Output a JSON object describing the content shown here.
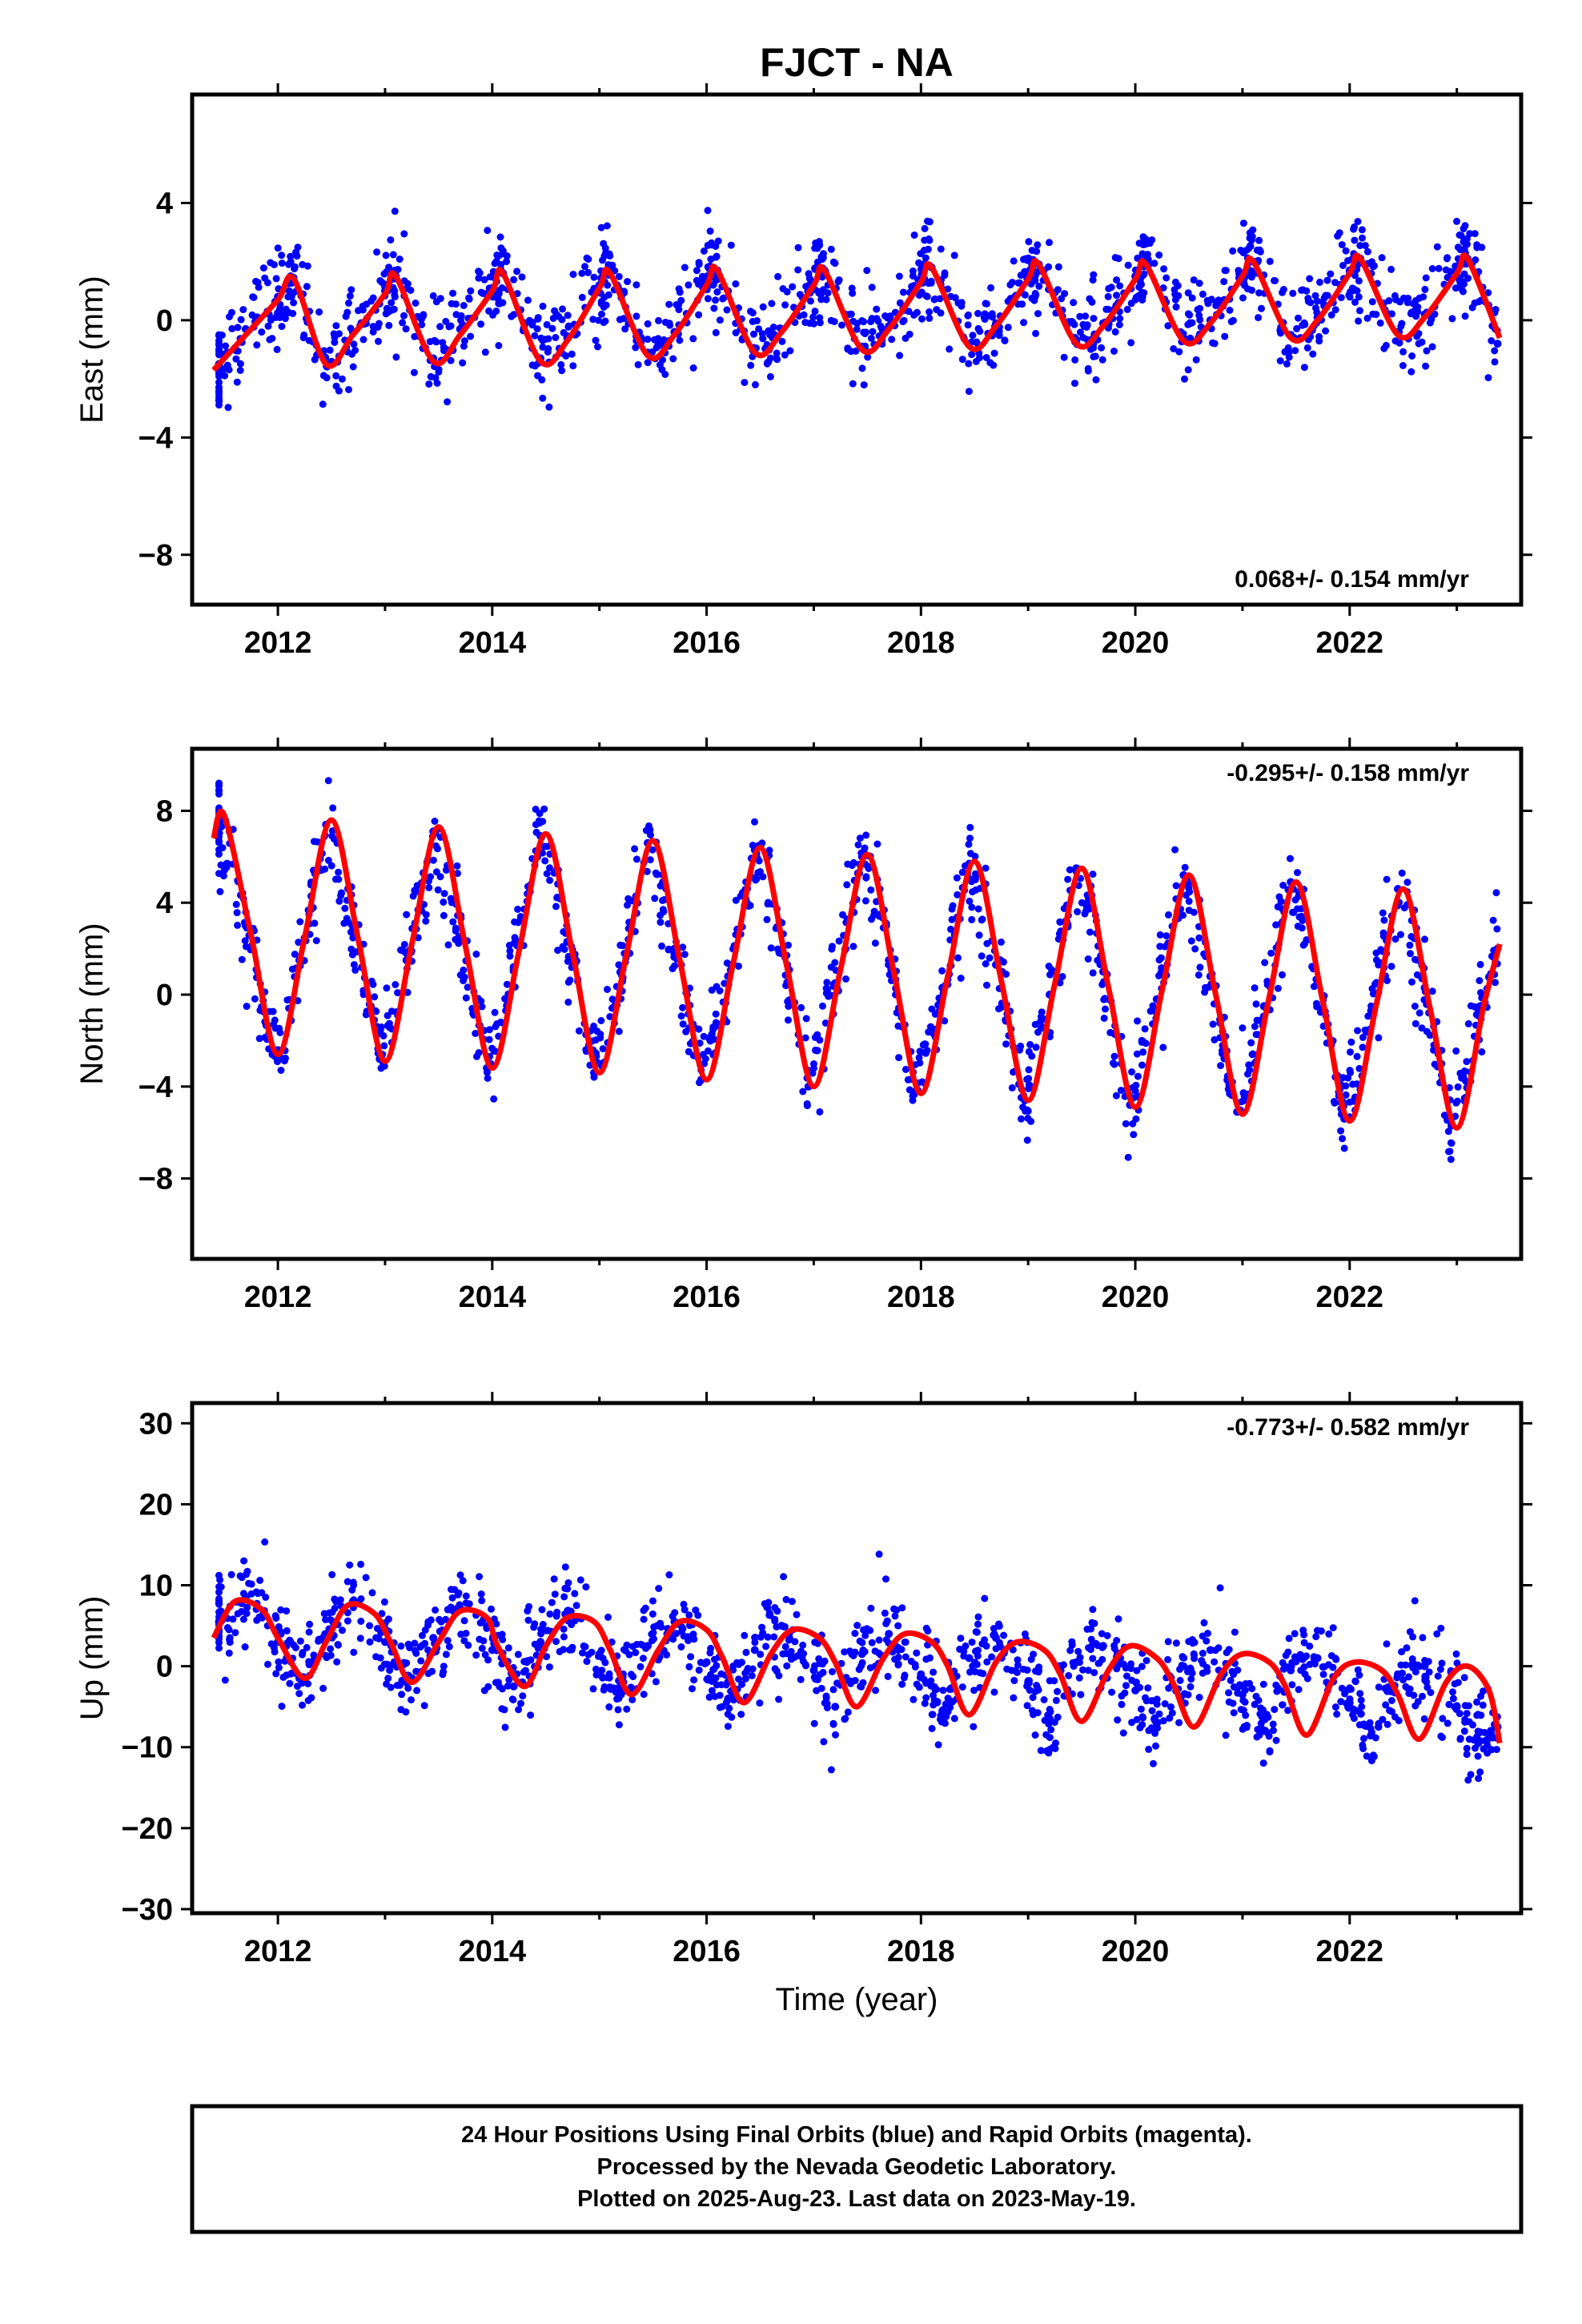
{
  "title": "FJCT - NA",
  "colors": {
    "points": "#0000ff",
    "fit": "#ff0000",
    "frame": "#000000"
  },
  "xaxis": {
    "label": "Time (year)",
    "range": [
      2011.2,
      2023.6
    ],
    "ticks": [
      2012,
      2014,
      2016,
      2018,
      2020,
      2022
    ],
    "tick_labels": [
      "2012",
      "2014",
      "2016",
      "2018",
      "2020",
      "2022"
    ]
  },
  "chart_data": [
    {
      "type": "scatter",
      "panel": "east",
      "ylabel": "East (mm)",
      "ylim": [
        -9.7,
        7.7
      ],
      "yticks": [
        -8,
        -4,
        0,
        4
      ],
      "ytick_labels": [
        "−8",
        "−4",
        "0",
        "4"
      ],
      "rate_label": "0.068+/- 0.154 mm/yr",
      "rate_position": "bottom-right",
      "series": [
        {
          "kind": "points",
          "x": [
            2011.45,
            2011.7,
            2012.0,
            2012.15,
            2012.45,
            2012.7,
            2013.0,
            2013.1,
            2013.45,
            2013.7,
            2014.0,
            2014.1,
            2014.45,
            2014.7,
            2015.0,
            2015.1,
            2015.45,
            2015.7,
            2016.0,
            2016.1,
            2016.45,
            2016.7,
            2017.0,
            2017.1,
            2017.45,
            2017.7,
            2018.0,
            2018.1,
            2018.45,
            2018.7,
            2019.0,
            2019.1,
            2019.45,
            2019.7,
            2020.0,
            2020.1,
            2020.45,
            2020.7,
            2021.0,
            2021.1,
            2021.45,
            2021.7,
            2022.0,
            2022.1,
            2022.45,
            2022.7,
            2023.0,
            2023.1,
            2023.38
          ],
          "y": [
            -1.5,
            -0.3,
            0.8,
            1.3,
            -1.4,
            -0.4,
            1.0,
            1.5,
            -1.3,
            -0.3,
            1.1,
            1.6,
            -1.3,
            -0.6,
            1.2,
            1.6,
            -1.1,
            -0.4,
            1.3,
            1.7,
            -1.0,
            -0.3,
            1.3,
            1.7,
            -0.9,
            -0.2,
            1.4,
            1.8,
            -0.8,
            -0.1,
            1.5,
            1.9,
            -0.7,
            -0.1,
            1.5,
            1.9,
            -0.6,
            0.0,
            1.6,
            2.0,
            -0.5,
            0.1,
            1.7,
            2.1,
            -0.4,
            0.2,
            1.7,
            2.1,
            -0.8
          ]
        },
        {
          "kind": "fit",
          "x": [
            2011.4,
            2011.7,
            2012.0,
            2012.15,
            2012.45,
            2012.7,
            2013.0,
            2013.1,
            2013.45,
            2013.7,
            2014.0,
            2014.1,
            2014.45,
            2014.7,
            2015.0,
            2015.1,
            2015.45,
            2015.7,
            2016.0,
            2016.1,
            2016.45,
            2016.7,
            2017.0,
            2017.1,
            2017.45,
            2017.7,
            2018.0,
            2018.1,
            2018.45,
            2018.7,
            2019.0,
            2019.1,
            2019.45,
            2019.7,
            2020.0,
            2020.1,
            2020.45,
            2020.7,
            2021.0,
            2021.1,
            2021.45,
            2021.7,
            2022.0,
            2022.1,
            2022.45,
            2022.7,
            2023.0,
            2023.1,
            2023.4
          ],
          "y": [
            -1.7,
            -0.5,
            0.7,
            1.4,
            -1.5,
            -0.5,
            0.9,
            1.5,
            -1.4,
            -0.5,
            1.0,
            1.6,
            -1.4,
            -0.7,
            1.1,
            1.6,
            -1.2,
            -0.5,
            1.2,
            1.7,
            -1.1,
            -0.4,
            1.2,
            1.7,
            -1.0,
            -0.3,
            1.3,
            1.8,
            -0.9,
            -0.2,
            1.4,
            1.9,
            -0.8,
            -0.2,
            1.4,
            1.9,
            -0.7,
            -0.1,
            1.5,
            2.0,
            -0.6,
            0.0,
            1.6,
            2.1,
            -0.5,
            0.1,
            1.6,
            2.1,
            -0.6
          ]
        }
      ]
    },
    {
      "type": "scatter",
      "panel": "north",
      "ylabel": "North (mm)",
      "ylim": [
        -11.5,
        10.7
      ],
      "yticks": [
        -8,
        -4,
        0,
        4,
        8
      ],
      "ytick_labels": [
        "−8",
        "−4",
        "0",
        "4",
        "8"
      ],
      "rate_label": "-0.295+/- 0.158 mm/yr",
      "rate_position": "top-right",
      "series": [
        {
          "kind": "points",
          "x": [
            2011.45,
            2011.7,
            2011.95,
            2012.2,
            2012.45,
            2012.7,
            2012.95,
            2013.2,
            2013.45,
            2013.7,
            2013.95,
            2014.2,
            2014.45,
            2014.7,
            2014.95,
            2015.2,
            2015.45,
            2015.7,
            2015.95,
            2016.2,
            2016.45,
            2016.7,
            2016.95,
            2017.2,
            2017.45,
            2017.7,
            2017.95,
            2018.2,
            2018.45,
            2018.7,
            2018.95,
            2019.2,
            2019.45,
            2019.7,
            2019.95,
            2020.2,
            2020.45,
            2020.7,
            2020.95,
            2021.2,
            2021.45,
            2021.7,
            2021.95,
            2022.2,
            2022.45,
            2022.7,
            2022.95,
            2023.2,
            2023.38
          ],
          "y": [
            7.5,
            3.0,
            -2.6,
            1.5,
            7.4,
            2.8,
            -2.8,
            1.5,
            7.1,
            2.5,
            -3.2,
            1.2,
            6.9,
            2.3,
            -3.4,
            1.0,
            6.6,
            2.0,
            -3.7,
            0.8,
            6.3,
            1.8,
            -4.0,
            0.5,
            6.0,
            1.5,
            -4.2,
            0.3,
            5.7,
            1.3,
            -4.5,
            0.0,
            5.5,
            1.0,
            -4.8,
            -0.2,
            5.2,
            0.8,
            -5.1,
            -0.5,
            4.9,
            0.5,
            -5.4,
            -0.7,
            4.6,
            0.3,
            -5.7,
            -0.9,
            2.0
          ]
        },
        {
          "kind": "fit",
          "x": [
            2011.4,
            2011.5,
            2011.75,
            2012.0,
            2012.25,
            2012.5,
            2012.75,
            2013.0,
            2013.25,
            2013.5,
            2013.75,
            2014.0,
            2014.25,
            2014.5,
            2014.75,
            2015.0,
            2015.25,
            2015.5,
            2015.75,
            2016.0,
            2016.25,
            2016.5,
            2016.75,
            2017.0,
            2017.25,
            2017.5,
            2017.75,
            2018.0,
            2018.25,
            2018.5,
            2018.75,
            2019.0,
            2019.25,
            2019.5,
            2019.75,
            2020.0,
            2020.25,
            2020.5,
            2020.75,
            2021.0,
            2021.25,
            2021.5,
            2021.75,
            2022.0,
            2022.25,
            2022.5,
            2022.75,
            2023.0,
            2023.25,
            2023.4
          ],
          "y": [
            6.8,
            7.8,
            2.6,
            -2.6,
            2.5,
            7.6,
            2.4,
            -2.9,
            2.2,
            7.3,
            2.1,
            -3.2,
            1.9,
            7.0,
            1.8,
            -3.4,
            1.7,
            6.7,
            1.5,
            -3.7,
            1.4,
            6.4,
            1.2,
            -4.0,
            1.1,
            6.1,
            0.9,
            -4.3,
            0.8,
            5.8,
            0.6,
            -4.6,
            0.5,
            5.5,
            0.3,
            -4.9,
            0.2,
            5.2,
            0.0,
            -5.2,
            -0.1,
            4.9,
            -0.3,
            -5.5,
            -0.4,
            4.6,
            -0.6,
            -5.8,
            -0.5,
            2.2
          ]
        }
      ]
    },
    {
      "type": "scatter",
      "panel": "up",
      "ylabel": "Up (mm)",
      "ylim": [
        -30.5,
        32.5
      ],
      "yticks": [
        -30,
        -20,
        -10,
        0,
        10,
        20,
        30
      ],
      "ytick_labels": [
        "−30",
        "−20",
        "−10",
        "0",
        "10",
        "20",
        "30"
      ],
      "rate_label": "-0.773+/- 0.582 mm/yr",
      "rate_position": "top-right",
      "series": [
        {
          "kind": "points",
          "x": [
            2011.45,
            2011.7,
            2012.0,
            2012.2,
            2012.45,
            2012.7,
            2013.0,
            2013.2,
            2013.45,
            2013.7,
            2014.0,
            2014.2,
            2014.45,
            2014.7,
            2015.0,
            2015.2,
            2015.45,
            2015.7,
            2016.0,
            2016.2,
            2016.45,
            2016.7,
            2017.0,
            2017.2,
            2017.45,
            2017.7,
            2018.0,
            2018.2,
            2018.45,
            2018.7,
            2019.0,
            2019.2,
            2019.45,
            2019.7,
            2020.0,
            2020.2,
            2020.45,
            2020.7,
            2021.0,
            2021.2,
            2021.45,
            2021.7,
            2022.0,
            2022.2,
            2022.45,
            2022.7,
            2023.0,
            2023.2,
            2023.38
          ],
          "y": [
            5.5,
            8.5,
            3.0,
            -1.5,
            4.0,
            8.0,
            3.0,
            -2.0,
            3.5,
            7.0,
            2.0,
            -2.5,
            3.0,
            6.5,
            1.5,
            -3.5,
            2.5,
            5.5,
            0.5,
            -4.0,
            2.0,
            5.0,
            -0.5,
            -5.0,
            1.5,
            4.0,
            -1.0,
            -5.5,
            1.0,
            3.5,
            -2.0,
            -6.5,
            0.5,
            2.5,
            -3.0,
            -7.0,
            0.0,
            2.0,
            -3.5,
            -8.0,
            -0.5,
            1.0,
            -4.5,
            -8.5,
            -1.0,
            0.0,
            -5.0,
            -9.5,
            -7.5
          ]
        },
        {
          "kind": "fit",
          "x": [
            2011.4,
            2011.6,
            2011.85,
            2012.0,
            2012.25,
            2012.45,
            2012.65,
            2012.9,
            2013.05,
            2013.25,
            2013.5,
            2013.7,
            2013.95,
            2014.05,
            2014.3,
            2014.5,
            2014.7,
            2014.95,
            2015.1,
            2015.3,
            2015.55,
            2015.75,
            2016.0,
            2016.15,
            2016.35,
            2016.6,
            2016.8,
            2017.05,
            2017.2,
            2017.4,
            2017.65,
            2017.85,
            2018.1,
            2018.25,
            2018.45,
            2018.7,
            2018.9,
            2019.15,
            2019.3,
            2019.5,
            2019.75,
            2019.95,
            2020.2,
            2020.35,
            2020.55,
            2020.8,
            2021.0,
            2021.25,
            2021.4,
            2021.6,
            2021.85,
            2022.05,
            2022.3,
            2022.45,
            2022.65,
            2022.9,
            2023.1,
            2023.3,
            2023.4
          ],
          "y": [
            3.5,
            8.0,
            7.0,
            3.5,
            -1.5,
            3.0,
            7.5,
            6.5,
            3.0,
            -2.0,
            3.0,
            6.8,
            6.0,
            2.5,
            -2.5,
            2.5,
            6.0,
            5.5,
            2.0,
            -3.5,
            2.0,
            5.5,
            4.5,
            1.0,
            -4.5,
            1.5,
            4.5,
            3.5,
            0.5,
            -5.0,
            1.0,
            4.0,
            3.0,
            0.0,
            -6.0,
            0.5,
            3.0,
            2.0,
            -1.0,
            -6.8,
            -0.5,
            2.5,
            1.0,
            -2.0,
            -7.5,
            -1.0,
            1.5,
            0.5,
            -2.5,
            -8.5,
            -1.5,
            0.5,
            -0.5,
            -3.5,
            -9.0,
            -2.0,
            0.0,
            -3.0,
            -9.5
          ]
        }
      ]
    }
  ],
  "footer": {
    "line1": "24 Hour Positions Using Final Orbits (blue) and Rapid Orbits (magenta).",
    "line2": "Processed by the Nevada Geodetic Laboratory.",
    "line3": "Plotted on 2025-Aug-23. Last data on 2023-May-19."
  }
}
